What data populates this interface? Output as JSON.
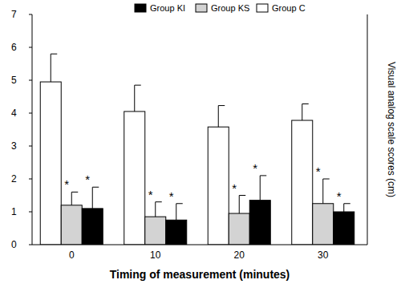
{
  "chart_data": {
    "type": "bar",
    "x_label": "Timing of measurement (minutes)",
    "y_label": "Visual analog scale scores (cm)",
    "categories": [
      "0",
      "10",
      "20",
      "30"
    ],
    "series": [
      {
        "name": "Group C",
        "color": "#ffffff",
        "values": [
          4.95,
          4.05,
          3.58,
          3.78
        ],
        "errors": [
          0.85,
          0.8,
          0.65,
          0.5
        ]
      },
      {
        "name": "Group KS",
        "color": "#d3d3d3",
        "values": [
          1.2,
          0.85,
          0.95,
          1.25
        ],
        "errors": [
          0.4,
          0.45,
          0.55,
          0.75
        ],
        "significance": [
          "*",
          "*",
          "*",
          "*"
        ]
      },
      {
        "name": "Group KI",
        "color": "#000000",
        "values": [
          1.1,
          0.75,
          1.35,
          1.0
        ],
        "errors": [
          0.65,
          0.5,
          0.75,
          0.25
        ],
        "significance": [
          "*",
          "*",
          "*",
          "*"
        ]
      }
    ],
    "ylim": [
      0,
      7
    ],
    "yticks": [
      0,
      1,
      2,
      3,
      4,
      5,
      6,
      7
    ],
    "legend": "top",
    "grid": false
  }
}
